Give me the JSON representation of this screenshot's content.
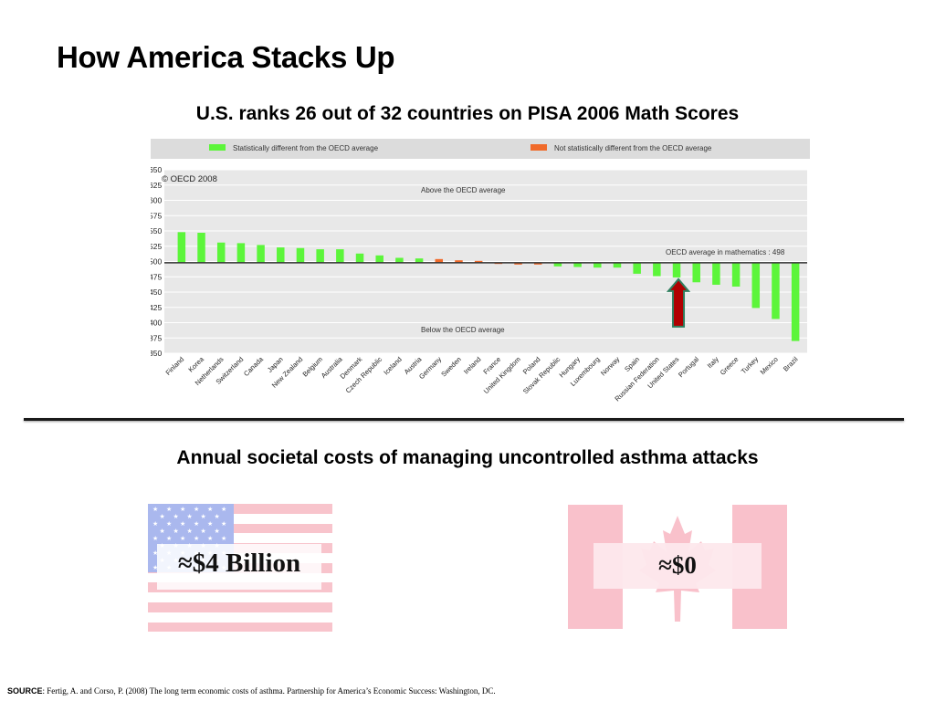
{
  "slide": {
    "title": "How America Stacks Up",
    "subtitle": "U.S. ranks 26 out of 32 countries on PISA 2006 Math Scores",
    "asthma_title": "Annual societal costs of managing uncontrolled asthma attacks",
    "us_value": "≈$4 Billion",
    "canada_value": "≈$0",
    "source_label": "SOURCE",
    "source_text": ": Fertig, A. and Corso, P. (2008) The long term economic costs of asthma. Partnership for America’s Economic Success: Washington, DC."
  },
  "colors": {
    "significant": "#5cf53a",
    "not_significant": "#f06a2a",
    "arrow_fill": "#b00000",
    "arrow_stroke": "#2f7f5f",
    "plot_bg": "#e8e8e8",
    "legend_bg": "#dcdcdc"
  },
  "chart_data": {
    "type": "bar",
    "baseline": 498,
    "ylim": [
      350,
      650
    ],
    "yticks": [
      650,
      625,
      600,
      575,
      550,
      525,
      500,
      475,
      450,
      425,
      400,
      375,
      350
    ],
    "grid": true,
    "legend": [
      {
        "label": "Statistically different from the OECD average",
        "color_key": "significant"
      },
      {
        "label": "Not statistically different from the OECD average",
        "color_key": "not_significant"
      }
    ],
    "annotations": {
      "copyright": "© OECD 2008",
      "above": "Above the OECD average",
      "below": "Below the OECD average",
      "average": "OECD average in mathematics : 498"
    },
    "highlight": "United States",
    "categories": [
      "Finland",
      "Korea",
      "Netherlands",
      "Switzerland",
      "Canada",
      "Japan",
      "New Zealand",
      "Belgium",
      "Australia",
      "Denmark",
      "Czech Republic",
      "Iceland",
      "Austria",
      "Germany",
      "Sweden",
      "Ireland",
      "France",
      "United Kingdom",
      "Poland",
      "Slovak Republic",
      "Hungary",
      "Luxembourg",
      "Norway",
      "Spain",
      "Russian Federation",
      "United States",
      "Portugal",
      "Italy",
      "Greece",
      "Turkey",
      "Mexico",
      "Brazil"
    ],
    "values": [
      548,
      547,
      531,
      530,
      527,
      523,
      522,
      520,
      520,
      513,
      510,
      506,
      505,
      504,
      502,
      501,
      496,
      495,
      495,
      492,
      491,
      490,
      490,
      480,
      476,
      474,
      466,
      462,
      459,
      424,
      406,
      370
    ],
    "significant": [
      true,
      true,
      true,
      true,
      true,
      true,
      true,
      true,
      true,
      true,
      true,
      true,
      true,
      false,
      false,
      false,
      false,
      false,
      false,
      true,
      true,
      true,
      true,
      true,
      true,
      true,
      true,
      true,
      true,
      true,
      true,
      true
    ]
  }
}
